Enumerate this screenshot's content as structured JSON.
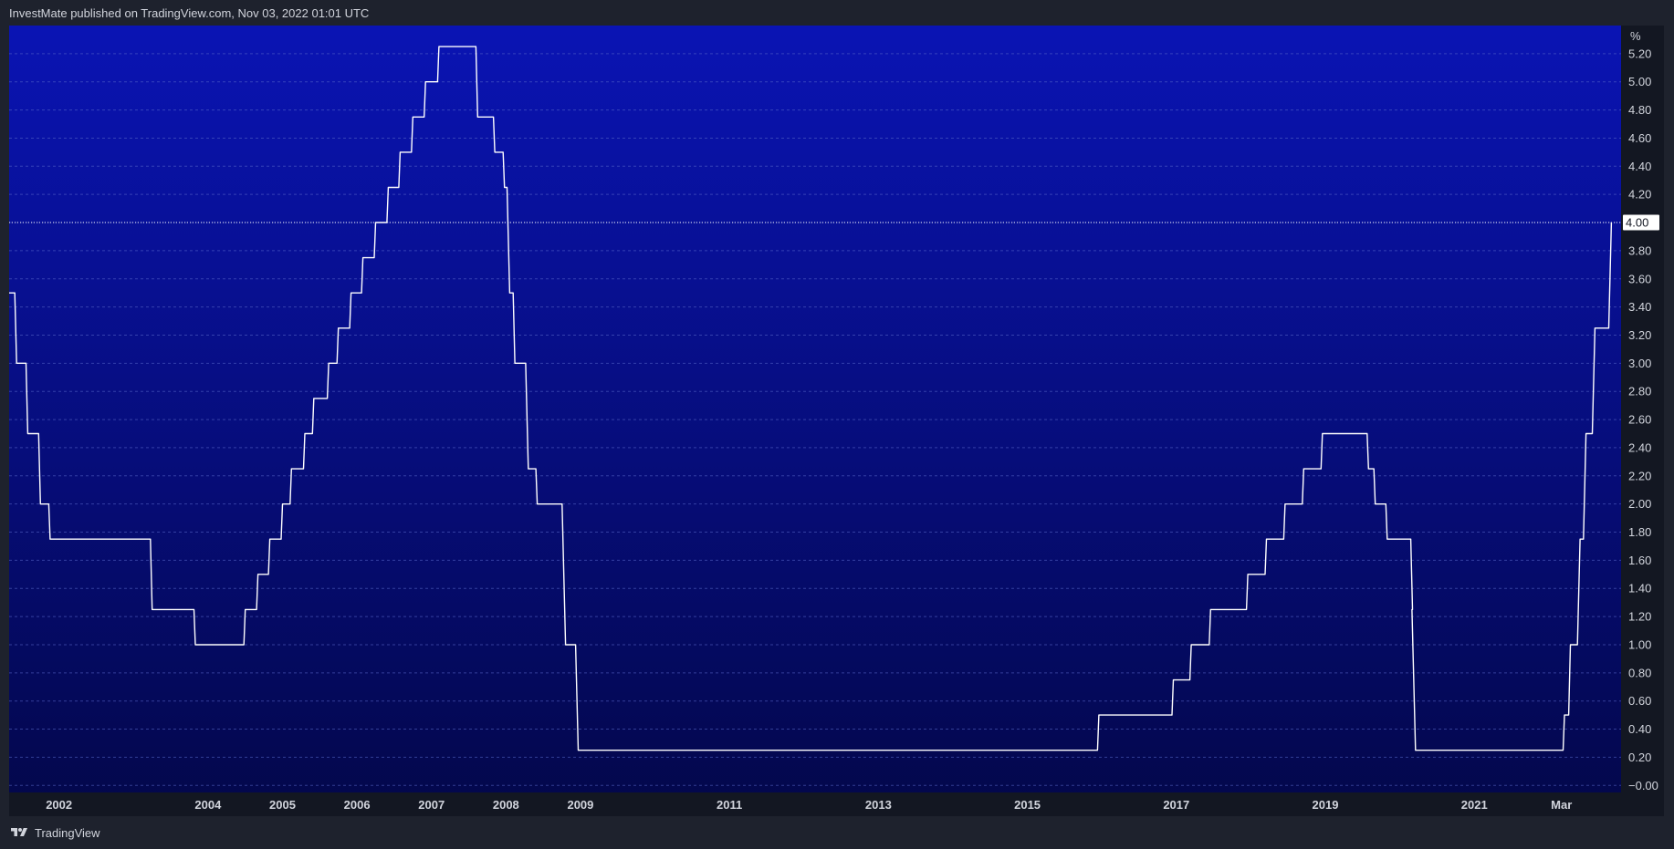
{
  "header": {
    "text": "InvestMate published on TradingView.com, Nov 03, 2022 01:01 UTC"
  },
  "footer": {
    "brand": "TradingView",
    "logo_icon": "tradingview-logo-icon"
  },
  "colors": {
    "background_top": "#0a14b4",
    "background_bottom": "#03074a",
    "line": "#ffffff",
    "grid": "#5a6acb",
    "last_value_label_bg": "#ffffff",
    "last_value_label_text": "#131722"
  },
  "chart_data": {
    "type": "line",
    "step": true,
    "y_unit_label": "%",
    "ylim": [
      -0.05,
      5.4
    ],
    "y_ticks": [
      "5.20",
      "5.00",
      "4.80",
      "4.60",
      "4.40",
      "4.20",
      "4.00",
      "3.80",
      "3.60",
      "3.40",
      "3.20",
      "3.00",
      "2.80",
      "2.60",
      "2.40",
      "2.20",
      "2.00",
      "1.80",
      "1.60",
      "1.40",
      "1.20",
      "1.00",
      "0.80",
      "0.60",
      "0.40",
      "0.20",
      "−0.00"
    ],
    "xlim": [
      2001.33,
      2022.97
    ],
    "x_ticks": [
      {
        "label": "2002",
        "x": 2002.0
      },
      {
        "label": "2004",
        "x": 2004.0
      },
      {
        "label": "2005",
        "x": 2005.0
      },
      {
        "label": "2006",
        "x": 2006.0
      },
      {
        "label": "2007",
        "x": 2007.0
      },
      {
        "label": "2008",
        "x": 2008.0
      },
      {
        "label": "2009",
        "x": 2009.0
      },
      {
        "label": "2011",
        "x": 2011.0
      },
      {
        "label": "2013",
        "x": 2013.0
      },
      {
        "label": "2015",
        "x": 2015.0
      },
      {
        "label": "2017",
        "x": 2017.0
      },
      {
        "label": "2019",
        "x": 2019.0
      },
      {
        "label": "2021",
        "x": 2021.0
      },
      {
        "label": "Mar",
        "x": 2022.17
      }
    ],
    "grid": true,
    "last_value": "4.00",
    "series": [
      {
        "points": [
          [
            2001.33,
            3.5
          ],
          [
            2001.43,
            3.0
          ],
          [
            2001.58,
            2.5
          ],
          [
            2001.75,
            2.0
          ],
          [
            2001.88,
            1.75
          ],
          [
            2003.25,
            1.25
          ],
          [
            2003.83,
            1.0
          ],
          [
            2004.5,
            1.25
          ],
          [
            2004.67,
            1.5
          ],
          [
            2004.83,
            1.75
          ],
          [
            2005.0,
            2.0
          ],
          [
            2005.12,
            2.25
          ],
          [
            2005.3,
            2.5
          ],
          [
            2005.42,
            2.75
          ],
          [
            2005.62,
            3.0
          ],
          [
            2005.75,
            3.25
          ],
          [
            2005.92,
            3.5
          ],
          [
            2006.08,
            3.75
          ],
          [
            2006.25,
            4.0
          ],
          [
            2006.42,
            4.25
          ],
          [
            2006.58,
            4.5
          ],
          [
            2006.75,
            4.75
          ],
          [
            2006.92,
            5.0
          ],
          [
            2007.1,
            5.25
          ],
          [
            2007.62,
            4.75
          ],
          [
            2007.85,
            4.5
          ],
          [
            2007.98,
            4.25
          ],
          [
            2008.05,
            3.5
          ],
          [
            2008.12,
            3.0
          ],
          [
            2008.3,
            2.25
          ],
          [
            2008.42,
            2.0
          ],
          [
            2008.8,
            1.0
          ],
          [
            2008.97,
            0.25
          ],
          [
            2015.96,
            0.5
          ],
          [
            2016.96,
            0.75
          ],
          [
            2017.2,
            1.0
          ],
          [
            2017.46,
            1.25
          ],
          [
            2017.96,
            1.5
          ],
          [
            2018.21,
            1.75
          ],
          [
            2018.46,
            2.0
          ],
          [
            2018.71,
            2.25
          ],
          [
            2018.96,
            2.5
          ],
          [
            2019.58,
            2.25
          ],
          [
            2019.67,
            2.0
          ],
          [
            2019.83,
            1.75
          ],
          [
            2020.17,
            1.25
          ],
          [
            2020.21,
            0.25
          ],
          [
            2022.21,
            0.5
          ],
          [
            2022.29,
            1.0
          ],
          [
            2022.42,
            1.75
          ],
          [
            2022.5,
            2.5
          ],
          [
            2022.62,
            3.25
          ],
          [
            2022.84,
            4.0
          ]
        ]
      }
    ]
  }
}
